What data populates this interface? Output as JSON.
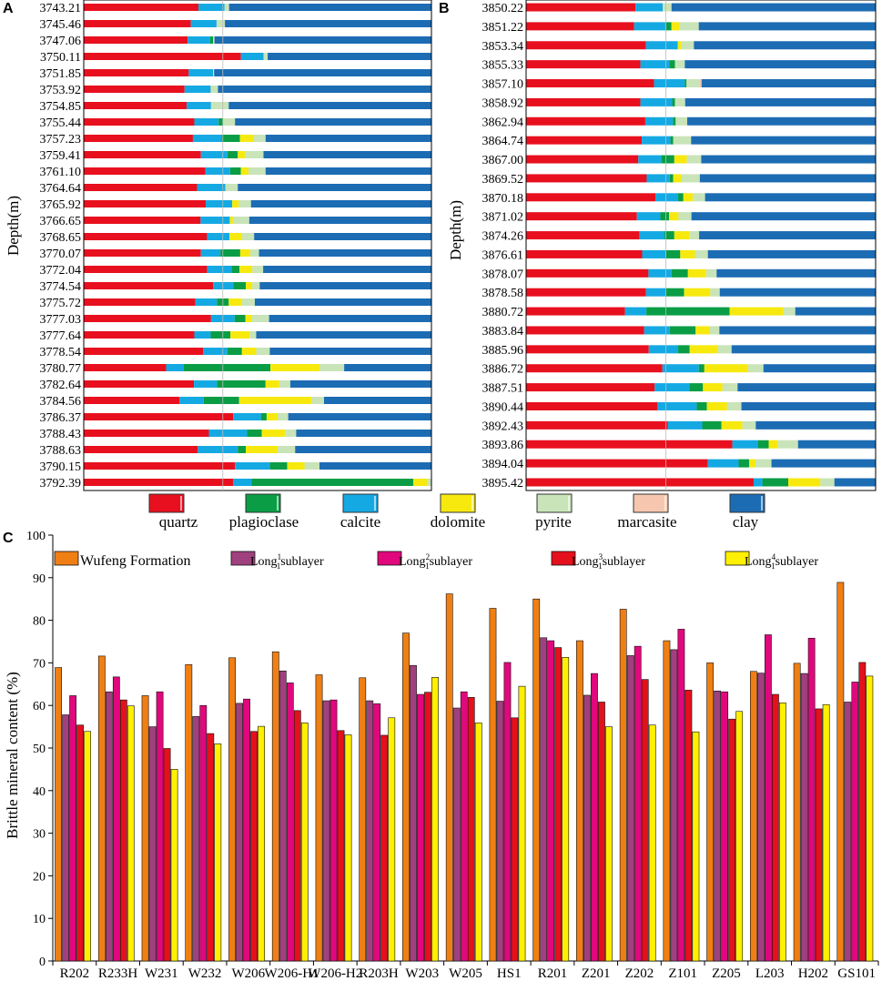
{
  "colors": {
    "quartz": "#e8101e",
    "calcite": "#15a9e3",
    "plagioclase": "#0a9d46",
    "dolomite": "#f7e90e",
    "pyrite": "#c9e4b8",
    "marcasite": "#f6c7ae",
    "clay": "#1c6cb4",
    "wufeng": "#f07f13",
    "long1": "#a0407e",
    "long2": "#e0087c",
    "long3": "#e4101c",
    "long4": "#ffef00"
  },
  "chart_data": [
    {
      "id": "A",
      "type": "bar",
      "stacked": true,
      "orientation": "horizontal",
      "panel_label": "A",
      "ylabel": "Depth(m)",
      "xlim": [
        0,
        100
      ],
      "series_order": [
        "quartz",
        "calcite",
        "plagioclase",
        "dolomite",
        "pyrite",
        "marcasite",
        "clay"
      ],
      "categories": [
        "3743.21",
        "3745.46",
        "3747.06",
        "3750.11",
        "3751.85",
        "3753.92",
        "3754.85",
        "3755.44",
        "3757.23",
        "3759.41",
        "3761.10",
        "3764.64",
        "3765.92",
        "3766.65",
        "3768.65",
        "3770.07",
        "3772.04",
        "3774.54",
        "3775.72",
        "3777.03",
        "3777.64",
        "3778.54",
        "3780.77",
        "3782.64",
        "3784.56",
        "3786.37",
        "3788.43",
        "3788.63",
        "3790.15",
        "3792.39"
      ],
      "rows": [
        [
          33.0,
          7.5,
          0,
          0,
          1.3,
          0,
          58.2
        ],
        [
          30.8,
          7.4,
          0,
          0,
          2.4,
          0,
          59.4
        ],
        [
          29.9,
          6.4,
          0.9,
          0,
          0.4,
          0,
          62.4
        ],
        [
          45.2,
          6.5,
          0,
          0,
          1.2,
          0,
          47.1
        ],
        [
          30.2,
          7.0,
          0,
          0,
          0.3,
          0,
          62.5
        ],
        [
          29.0,
          7.5,
          0,
          0,
          2.1,
          0,
          61.4
        ],
        [
          29.6,
          7.0,
          0,
          0,
          5.1,
          0,
          58.3
        ],
        [
          31.8,
          7.0,
          1.2,
          0,
          3.5,
          0,
          56.5
        ],
        [
          31.4,
          8.2,
          5.3,
          3.8,
          3.6,
          0,
          47.7
        ],
        [
          33.7,
          7.6,
          3.0,
          2.1,
          5.3,
          0,
          48.3
        ],
        [
          35.0,
          7.1,
          3.1,
          2.2,
          4.9,
          0,
          47.7
        ],
        [
          32.6,
          8.1,
          0,
          0,
          3.6,
          0,
          55.7
        ],
        [
          35.1,
          7.6,
          0,
          1.9,
          3.5,
          0,
          51.9
        ],
        [
          33.6,
          8.4,
          0,
          0.9,
          4.7,
          0,
          52.4
        ],
        [
          35.5,
          6.4,
          0,
          3.6,
          3.5,
          0,
          51.0
        ],
        [
          33.7,
          5.6,
          5.7,
          2.9,
          2.5,
          0,
          49.6
        ],
        [
          35.5,
          7.0,
          2.3,
          3.7,
          3.1,
          0,
          48.4
        ],
        [
          37.2,
          5.8,
          3.6,
          1.9,
          2.1,
          0,
          49.4
        ],
        [
          32.1,
          6.2,
          3.4,
          3.7,
          3.8,
          0,
          50.8
        ],
        [
          36.6,
          6.8,
          3.1,
          1.9,
          4.9,
          0,
          46.7
        ],
        [
          31.8,
          4.7,
          5.7,
          5.5,
          1.9,
          0,
          50.4
        ],
        [
          34.3,
          7.0,
          4.2,
          4.1,
          3.9,
          0,
          46.5
        ],
        [
          23.7,
          5.1,
          24.9,
          14.2,
          7.0,
          0,
          25.1
        ],
        [
          31.7,
          6.6,
          14.0,
          3.9,
          3.2,
          0,
          40.6
        ],
        [
          27.5,
          7.0,
          10.2,
          20.8,
          3.6,
          0,
          30.9
        ],
        [
          43.0,
          8.0,
          1.6,
          3.2,
          3.0,
          0,
          41.2
        ],
        [
          36.0,
          11.0,
          4.2,
          6.7,
          3.2,
          0,
          38.9
        ],
        [
          32.8,
          11.5,
          2.3,
          9.2,
          5.0,
          0,
          39.2
        ],
        [
          43.5,
          10.0,
          5.0,
          5.0,
          4.3,
          0,
          32.2
        ],
        [
          43.1,
          5.3,
          46.6,
          3.9,
          1.3,
          0,
          -0.2
        ]
      ]
    },
    {
      "id": "B",
      "type": "bar",
      "stacked": true,
      "orientation": "horizontal",
      "panel_label": "B",
      "ylabel": "Depth(m)",
      "xlim": [
        0,
        100
      ],
      "series_order": [
        "quartz",
        "calcite",
        "plagioclase",
        "dolomite",
        "pyrite",
        "marcasite",
        "clay"
      ],
      "categories": [
        "3850.22",
        "3851.22",
        "3853.34",
        "3855.33",
        "3857.10",
        "3858.92",
        "3862.94",
        "3864.74",
        "3867.00",
        "3869.52",
        "3870.18",
        "3871.02",
        "3874.26",
        "3876.61",
        "3878.07",
        "3878.58",
        "3880.72",
        "3883.84",
        "3885.96",
        "3886.72",
        "3887.51",
        "3890.44",
        "3892.43",
        "3893.86",
        "3894.04",
        "3895.42"
      ],
      "rows": [
        [
          31.3,
          7.8,
          0,
          0,
          2.5,
          0,
          58.4
        ],
        [
          30.9,
          9.1,
          1.6,
          2.3,
          5.5,
          0,
          50.6
        ],
        [
          34.3,
          9.1,
          0,
          0.9,
          3.7,
          0,
          52.0
        ],
        [
          32.7,
          8.3,
          1.6,
          0,
          2.8,
          0,
          54.6
        ],
        [
          36.6,
          8.8,
          0.5,
          0,
          3.6,
          0.7,
          49.8
        ],
        [
          32.7,
          9.1,
          0.8,
          0,
          2.9,
          0,
          54.5
        ],
        [
          34.1,
          7.9,
          0.8,
          0,
          3.3,
          0,
          53.9
        ],
        [
          33.1,
          8.2,
          0.8,
          0,
          5.1,
          0,
          52.8
        ],
        [
          32.1,
          6.6,
          3.7,
          3.6,
          4.1,
          0,
          49.9
        ],
        [
          34.5,
          6.6,
          1.0,
          2.3,
          5.3,
          0,
          50.3
        ],
        [
          37.0,
          6.5,
          1.5,
          2.7,
          3.5,
          0,
          48.8
        ],
        [
          31.7,
          6.7,
          2.5,
          2.7,
          3.7,
          0,
          52.7
        ],
        [
          32.4,
          7.2,
          2.8,
          4.3,
          2.8,
          0,
          50.5
        ],
        [
          33.2,
          6.9,
          4.0,
          4.2,
          3.7,
          0,
          48.0
        ],
        [
          35.0,
          6.6,
          4.7,
          5.2,
          3.0,
          0,
          45.5
        ],
        [
          34.3,
          5.8,
          5.1,
          7.5,
          2.7,
          0,
          44.6
        ],
        [
          28.3,
          6.1,
          23.8,
          15.4,
          3.4,
          0,
          23.0
        ],
        [
          33.8,
          7.3,
          7.4,
          4.1,
          2.7,
          0,
          44.7
        ],
        [
          35.1,
          8.4,
          3.3,
          8.1,
          3.9,
          0,
          41.2
        ],
        [
          39.0,
          10.4,
          1.6,
          12.5,
          4.4,
          0,
          32.1
        ],
        [
          36.8,
          9.9,
          3.9,
          5.6,
          4.3,
          0,
          39.5
        ],
        [
          37.6,
          11.2,
          2.9,
          5.8,
          4.1,
          0,
          38.4
        ],
        [
          40.5,
          9.9,
          5.5,
          6.0,
          3.8,
          0,
          34.3
        ],
        [
          59.0,
          7.3,
          3.1,
          2.5,
          5.9,
          0,
          22.2
        ],
        [
          52.0,
          8.8,
          3.0,
          1.8,
          4.6,
          0,
          29.8
        ],
        [
          65.1,
          2.5,
          7.4,
          9.2,
          4.0,
          0,
          11.8
        ]
      ]
    },
    {
      "id": "C",
      "type": "bar",
      "panel_label": "C",
      "title": "",
      "xlabel": "",
      "ylabel": "Brittle mineral content (%)",
      "ylim": [
        0,
        100
      ],
      "yticks": [
        "0",
        "10",
        "20",
        "30",
        "40",
        "50",
        "60",
        "70",
        "80",
        "90",
        "100"
      ],
      "categories": [
        "R202",
        "R233H",
        "W231",
        "W232",
        "W206",
        "W206-H1",
        "W206-H2",
        "R203H",
        "W203",
        "W205",
        "HS1",
        "R201",
        "Z201",
        "Z202",
        "Z101",
        "Z205",
        "L203",
        "H202",
        "GS101"
      ],
      "legend": [
        {
          "key": "wufeng",
          "name": "Wufeng Formation",
          "base": "Wufeng Formation",
          "sup": "",
          "tail": ""
        },
        {
          "key": "long1",
          "name": "Long11sublayer",
          "base": "Long",
          "sub": "1",
          "sup": "1",
          "tail": "sublayer"
        },
        {
          "key": "long2",
          "name": "Long12sublayer",
          "base": "Long",
          "sub": "1",
          "sup": "2",
          "tail": "sublayer"
        },
        {
          "key": "long3",
          "name": "Long13sublayer",
          "base": "Long",
          "sub": "1",
          "sup": "3",
          "tail": "sublayer"
        },
        {
          "key": "long4",
          "name": "Long14sublayer",
          "base": "Long",
          "sub": "1",
          "sup": "4",
          "tail": "sublayer"
        }
      ],
      "series": [
        {
          "name": "Wufeng Formation",
          "key": "wufeng",
          "values": [
            68.9,
            71.6,
            62.3,
            69.6,
            71.2,
            72.6,
            67.2,
            66.5,
            77.0,
            86.2,
            82.8,
            85.0,
            75.2,
            82.6,
            75.2,
            70.0,
            68.0,
            69.9,
            88.9
          ]
        },
        {
          "name": "Long11sublayer",
          "key": "long1",
          "values": [
            57.8,
            63.2,
            55.0,
            57.4,
            60.5,
            68.1,
            61.1,
            61.1,
            69.4,
            59.4,
            61.0,
            75.9,
            62.4,
            71.7,
            73.1,
            63.4,
            67.6,
            67.5,
            60.8
          ]
        },
        {
          "name": "Long12sublayer",
          "key": "long2",
          "values": [
            62.3,
            66.7,
            63.2,
            60.0,
            61.5,
            65.3,
            61.3,
            60.4,
            62.6,
            63.2,
            70.1,
            75.2,
            67.5,
            73.9,
            77.9,
            63.2,
            76.6,
            75.8,
            65.5
          ]
        },
        {
          "name": "Long13sublayer",
          "key": "long3",
          "values": [
            55.4,
            61.3,
            49.9,
            53.4,
            53.9,
            58.8,
            54.1,
            53.0,
            63.1,
            61.9,
            57.1,
            73.6,
            60.8,
            66.1,
            63.6,
            56.8,
            62.6,
            59.2,
            70.1
          ]
        },
        {
          "name": "Long14sublayer",
          "key": "long4",
          "values": [
            53.9,
            59.9,
            45.0,
            51.0,
            55.1,
            55.9,
            53.1,
            57.1,
            66.6,
            55.9,
            64.5,
            71.3,
            55.0,
            55.4,
            53.8,
            58.6,
            60.6,
            60.2,
            66.9
          ]
        }
      ]
    }
  ],
  "legend_AB": [
    {
      "key": "quartz",
      "label": "quartz"
    },
    {
      "key": "plagioclase",
      "label": "plagioclase"
    },
    {
      "key": "calcite",
      "label": "calcite"
    },
    {
      "key": "dolomite",
      "label": "dolomite"
    },
    {
      "key": "pyrite",
      "label": "pyrite"
    },
    {
      "key": "marcasite",
      "label": "marcasite"
    },
    {
      "key": "clay",
      "label": "clay"
    }
  ]
}
